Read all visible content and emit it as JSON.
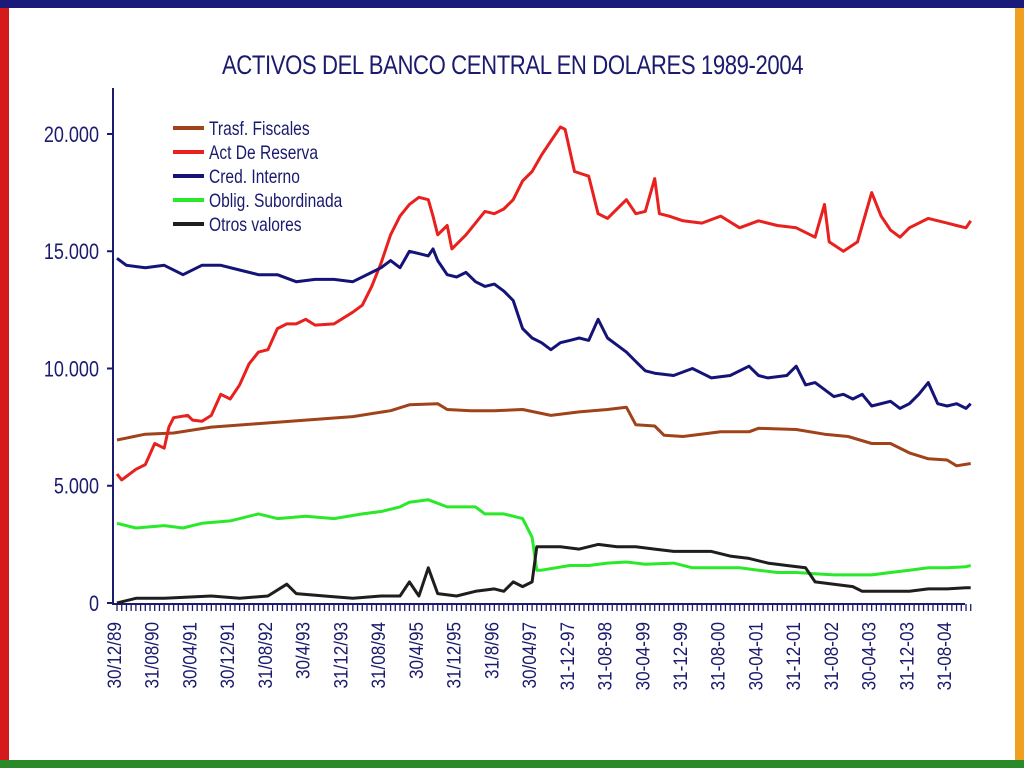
{
  "frame": {
    "top_color": "#1a1a7a",
    "left_color": "#d41a1a",
    "right_color": "#f0a020",
    "bottom_color": "#2a8a2a"
  },
  "chart_data": {
    "type": "line",
    "title": "ACTIVOS DEL BANCO CENTRAL EN DOLARES 1989-2004",
    "xlabel": "",
    "ylabel": "",
    "ylim": [
      0,
      22000
    ],
    "yticks": [
      0,
      5000,
      10000,
      15000,
      20000
    ],
    "ytick_labels": [
      "0",
      "5.000",
      "10.000",
      "15.000",
      "20.000"
    ],
    "xlim": [
      0,
      180
    ],
    "xticks": [
      0,
      8,
      16,
      24,
      32,
      40,
      48,
      56,
      64,
      72,
      80,
      88,
      96,
      104,
      112,
      120,
      128,
      136,
      144,
      152,
      160,
      168,
      176
    ],
    "xtick_labels": [
      "30/12/89",
      "31/08/90",
      "30/04/91",
      "30/12/91",
      "31/08/92",
      "30/4/93",
      "31/12/93",
      "31/08/94",
      "30/4/95",
      "31/12/95",
      "31/8/96",
      "30/04/97",
      "31-12-97",
      "31-08-98",
      "30-04-99",
      "31-12-99",
      "31-08-00",
      "30-04-01",
      "31-12-01",
      "31-08-02",
      "30-04-03",
      "31-12-03",
      "31-08-04"
    ],
    "grid": false,
    "legend_position": "top-left",
    "series": [
      {
        "name": "Trasf. Fiscales",
        "color": "#a0421a",
        "points": [
          [
            0,
            6950
          ],
          [
            6,
            7200
          ],
          [
            12,
            7250
          ],
          [
            20,
            7500
          ],
          [
            30,
            7650
          ],
          [
            40,
            7800
          ],
          [
            50,
            7950
          ],
          [
            58,
            8200
          ],
          [
            62,
            8450
          ],
          [
            68,
            8500
          ],
          [
            70,
            8250
          ],
          [
            75,
            8200
          ],
          [
            80,
            8200
          ],
          [
            86,
            8250
          ],
          [
            92,
            8000
          ],
          [
            98,
            8150
          ],
          [
            104,
            8250
          ],
          [
            108,
            8350
          ],
          [
            110,
            7600
          ],
          [
            114,
            7550
          ],
          [
            116,
            7150
          ],
          [
            120,
            7100
          ],
          [
            128,
            7300
          ],
          [
            134,
            7300
          ],
          [
            136,
            7450
          ],
          [
            144,
            7400
          ],
          [
            150,
            7200
          ],
          [
            155,
            7100
          ],
          [
            160,
            6800
          ],
          [
            164,
            6800
          ],
          [
            168,
            6400
          ],
          [
            172,
            6150
          ],
          [
            176,
            6100
          ],
          [
            178,
            5850
          ],
          [
            181,
            5950
          ]
        ]
      },
      {
        "name": "Act De Reserva",
        "color": "#e8201e",
        "points": [
          [
            0,
            5500
          ],
          [
            1,
            5250
          ],
          [
            4,
            5700
          ],
          [
            6,
            5900
          ],
          [
            8,
            6800
          ],
          [
            10,
            6600
          ],
          [
            11,
            7500
          ],
          [
            12,
            7900
          ],
          [
            15,
            8000
          ],
          [
            16,
            7800
          ],
          [
            18,
            7750
          ],
          [
            20,
            8000
          ],
          [
            22,
            8900
          ],
          [
            24,
            8700
          ],
          [
            26,
            9300
          ],
          [
            28,
            10200
          ],
          [
            30,
            10700
          ],
          [
            32,
            10800
          ],
          [
            34,
            11700
          ],
          [
            36,
            11900
          ],
          [
            38,
            11900
          ],
          [
            40,
            12100
          ],
          [
            42,
            11850
          ],
          [
            46,
            11900
          ],
          [
            50,
            12400
          ],
          [
            52,
            12700
          ],
          [
            54,
            13500
          ],
          [
            56,
            14500
          ],
          [
            58,
            15700
          ],
          [
            60,
            16500
          ],
          [
            62,
            17000
          ],
          [
            64,
            17300
          ],
          [
            66,
            17200
          ],
          [
            67,
            16500
          ],
          [
            68,
            15700
          ],
          [
            70,
            16100
          ],
          [
            71,
            15100
          ],
          [
            74,
            15700
          ],
          [
            76,
            16200
          ],
          [
            78,
            16700
          ],
          [
            80,
            16600
          ],
          [
            82,
            16800
          ],
          [
            84,
            17200
          ],
          [
            86,
            18000
          ],
          [
            88,
            18400
          ],
          [
            90,
            19100
          ],
          [
            92,
            19700
          ],
          [
            94,
            20300
          ],
          [
            95,
            20200
          ],
          [
            97,
            18400
          ],
          [
            100,
            18200
          ],
          [
            102,
            16600
          ],
          [
            104,
            16400
          ],
          [
            106,
            16800
          ],
          [
            108,
            17200
          ],
          [
            110,
            16600
          ],
          [
            112,
            16700
          ],
          [
            114,
            18100
          ],
          [
            115,
            16600
          ],
          [
            117,
            16500
          ],
          [
            120,
            16300
          ],
          [
            124,
            16200
          ],
          [
            128,
            16500
          ],
          [
            132,
            16000
          ],
          [
            136,
            16300
          ],
          [
            140,
            16100
          ],
          [
            144,
            16000
          ],
          [
            148,
            15600
          ],
          [
            150,
            17000
          ],
          [
            151,
            15400
          ],
          [
            154,
            15000
          ],
          [
            157,
            15400
          ],
          [
            160,
            17500
          ],
          [
            162,
            16500
          ],
          [
            164,
            15900
          ],
          [
            166,
            15600
          ],
          [
            168,
            16000
          ],
          [
            172,
            16400
          ],
          [
            176,
            16200
          ],
          [
            178,
            16100
          ],
          [
            180,
            16000
          ],
          [
            181,
            16300
          ]
        ]
      },
      {
        "name": "Cred. Interno",
        "color": "#141478",
        "points": [
          [
            0,
            14700
          ],
          [
            2,
            14400
          ],
          [
            6,
            14300
          ],
          [
            10,
            14400
          ],
          [
            14,
            14000
          ],
          [
            18,
            14400
          ],
          [
            22,
            14400
          ],
          [
            26,
            14200
          ],
          [
            30,
            14000
          ],
          [
            34,
            14000
          ],
          [
            38,
            13700
          ],
          [
            42,
            13800
          ],
          [
            46,
            13800
          ],
          [
            50,
            13700
          ],
          [
            54,
            14100
          ],
          [
            56,
            14300
          ],
          [
            58,
            14600
          ],
          [
            60,
            14300
          ],
          [
            62,
            15000
          ],
          [
            64,
            14900
          ],
          [
            66,
            14800
          ],
          [
            67,
            15100
          ],
          [
            68,
            14600
          ],
          [
            70,
            14000
          ],
          [
            72,
            13900
          ],
          [
            74,
            14100
          ],
          [
            76,
            13700
          ],
          [
            78,
            13500
          ],
          [
            80,
            13600
          ],
          [
            82,
            13300
          ],
          [
            84,
            12900
          ],
          [
            86,
            11700
          ],
          [
            88,
            11300
          ],
          [
            90,
            11100
          ],
          [
            92,
            10800
          ],
          [
            94,
            11100
          ],
          [
            96,
            11200
          ],
          [
            98,
            11300
          ],
          [
            100,
            11200
          ],
          [
            102,
            12100
          ],
          [
            104,
            11300
          ],
          [
            106,
            11000
          ],
          [
            108,
            10700
          ],
          [
            110,
            10300
          ],
          [
            112,
            9900
          ],
          [
            114,
            9800
          ],
          [
            118,
            9700
          ],
          [
            122,
            10000
          ],
          [
            124,
            9800
          ],
          [
            126,
            9600
          ],
          [
            130,
            9700
          ],
          [
            134,
            10100
          ],
          [
            136,
            9700
          ],
          [
            138,
            9600
          ],
          [
            142,
            9700
          ],
          [
            144,
            10100
          ],
          [
            146,
            9300
          ],
          [
            148,
            9400
          ],
          [
            150,
            9100
          ],
          [
            152,
            8800
          ],
          [
            154,
            8900
          ],
          [
            156,
            8700
          ],
          [
            158,
            8900
          ],
          [
            160,
            8400
          ],
          [
            164,
            8600
          ],
          [
            166,
            8300
          ],
          [
            168,
            8500
          ],
          [
            170,
            8900
          ],
          [
            172,
            9400
          ],
          [
            174,
            8500
          ],
          [
            176,
            8400
          ],
          [
            178,
            8500
          ],
          [
            180,
            8300
          ],
          [
            181,
            8500
          ]
        ]
      },
      {
        "name": "Oblig. Subordinada",
        "color": "#2ae82a",
        "points": [
          [
            0,
            3400
          ],
          [
            4,
            3200
          ],
          [
            10,
            3300
          ],
          [
            14,
            3200
          ],
          [
            18,
            3400
          ],
          [
            24,
            3500
          ],
          [
            30,
            3800
          ],
          [
            34,
            3600
          ],
          [
            40,
            3700
          ],
          [
            46,
            3600
          ],
          [
            52,
            3800
          ],
          [
            56,
            3900
          ],
          [
            60,
            4100
          ],
          [
            62,
            4300
          ],
          [
            66,
            4400
          ],
          [
            70,
            4100
          ],
          [
            76,
            4100
          ],
          [
            78,
            3800
          ],
          [
            82,
            3800
          ],
          [
            86,
            3600
          ],
          [
            88,
            2800
          ],
          [
            89,
            1400
          ],
          [
            90,
            1400
          ],
          [
            96,
            1600
          ],
          [
            100,
            1600
          ],
          [
            104,
            1700
          ],
          [
            108,
            1750
          ],
          [
            112,
            1650
          ],
          [
            118,
            1700
          ],
          [
            122,
            1500
          ],
          [
            128,
            1500
          ],
          [
            132,
            1500
          ],
          [
            136,
            1400
          ],
          [
            140,
            1300
          ],
          [
            144,
            1300
          ],
          [
            148,
            1250
          ],
          [
            152,
            1200
          ],
          [
            156,
            1200
          ],
          [
            160,
            1200
          ],
          [
            164,
            1300
          ],
          [
            168,
            1400
          ],
          [
            172,
            1500
          ],
          [
            176,
            1500
          ],
          [
            180,
            1550
          ],
          [
            181,
            1600
          ]
        ]
      },
      {
        "name": "Otros valores",
        "color": "#1e1e1e",
        "points": [
          [
            0,
            0
          ],
          [
            4,
            200
          ],
          [
            10,
            200
          ],
          [
            20,
            300
          ],
          [
            26,
            200
          ],
          [
            32,
            300
          ],
          [
            36,
            800
          ],
          [
            38,
            400
          ],
          [
            44,
            300
          ],
          [
            50,
            200
          ],
          [
            56,
            300
          ],
          [
            60,
            300
          ],
          [
            62,
            900
          ],
          [
            64,
            300
          ],
          [
            66,
            1500
          ],
          [
            68,
            400
          ],
          [
            72,
            300
          ],
          [
            76,
            500
          ],
          [
            80,
            600
          ],
          [
            82,
            500
          ],
          [
            84,
            900
          ],
          [
            86,
            700
          ],
          [
            88,
            900
          ],
          [
            89,
            2400
          ],
          [
            94,
            2400
          ],
          [
            98,
            2300
          ],
          [
            102,
            2500
          ],
          [
            106,
            2400
          ],
          [
            110,
            2400
          ],
          [
            114,
            2300
          ],
          [
            118,
            2200
          ],
          [
            122,
            2200
          ],
          [
            126,
            2200
          ],
          [
            130,
            2000
          ],
          [
            134,
            1900
          ],
          [
            138,
            1700
          ],
          [
            142,
            1600
          ],
          [
            146,
            1500
          ],
          [
            148,
            900
          ],
          [
            152,
            800
          ],
          [
            156,
            700
          ],
          [
            158,
            500
          ],
          [
            164,
            500
          ],
          [
            168,
            500
          ],
          [
            172,
            600
          ],
          [
            176,
            600
          ],
          [
            180,
            650
          ],
          [
            181,
            650
          ]
        ]
      }
    ]
  }
}
